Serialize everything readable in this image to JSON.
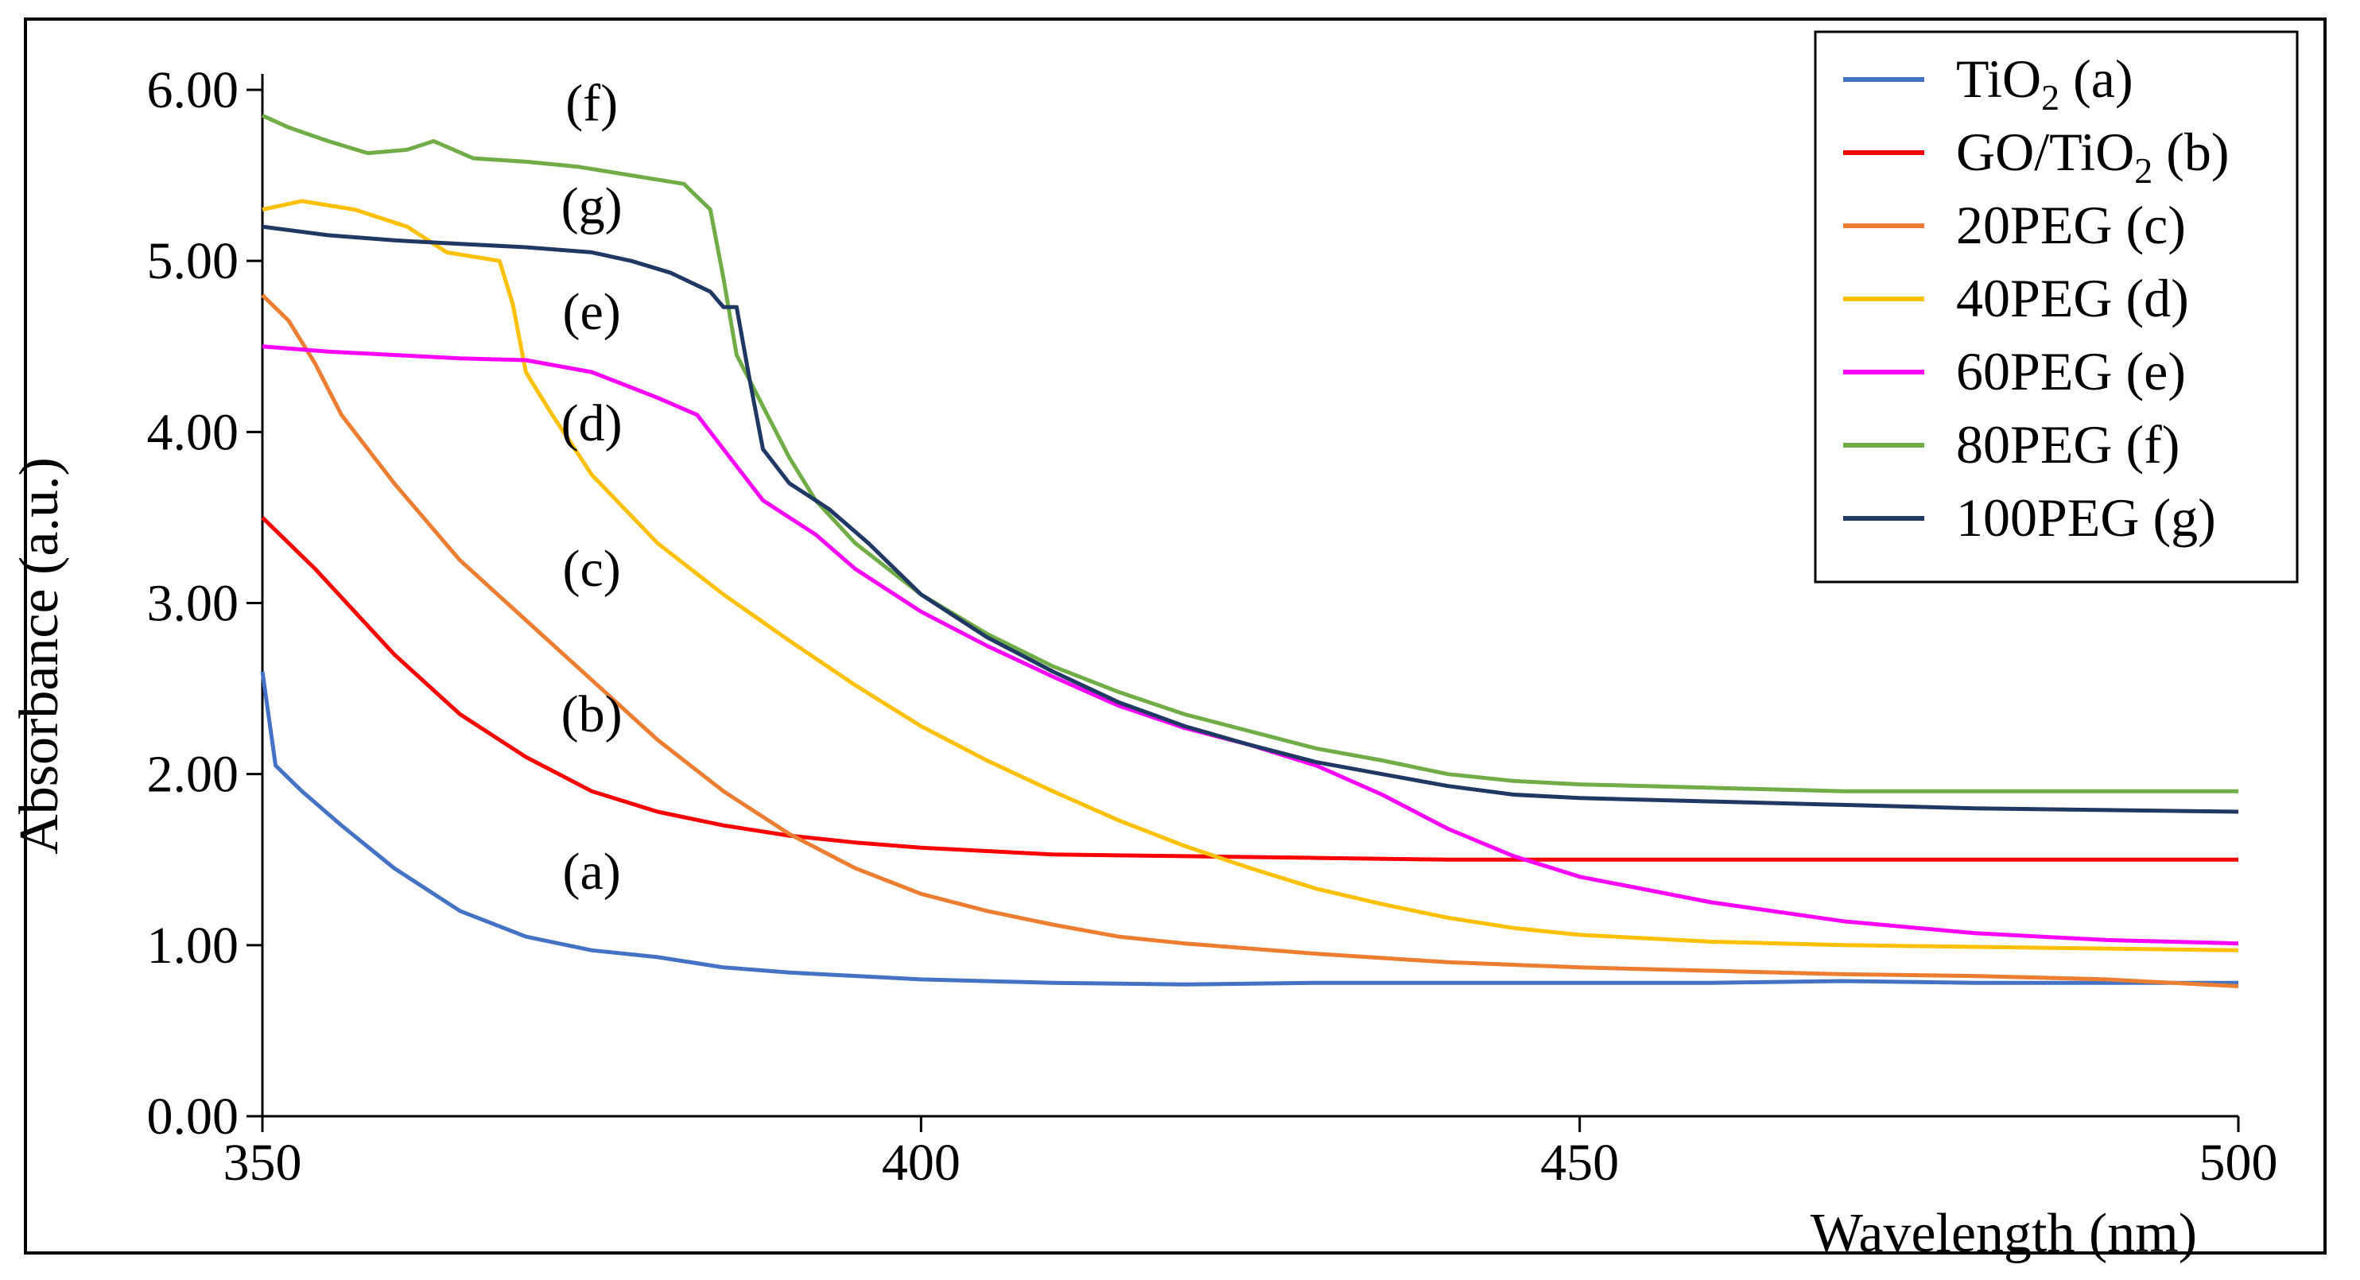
{
  "chart_data": {
    "type": "line",
    "title": "",
    "xlabel": "Wavelength (nm)",
    "ylabel": "Absorbance (a.u.)",
    "xlim": [
      350,
      500
    ],
    "ylim": [
      0,
      6
    ],
    "xticks": [
      350,
      400,
      450,
      500
    ],
    "xtick_labels": [
      "350",
      "400",
      "450",
      "500"
    ],
    "yticks": [
      0,
      1,
      2,
      3,
      4,
      5,
      6
    ],
    "ytick_labels": [
      "0.00",
      "1.00",
      "2.00",
      "3.00",
      "4.00",
      "5.00",
      "6.00"
    ],
    "grid": false,
    "legend_position": "top-right",
    "series": [
      {
        "name": "TiO2 (a)",
        "legend_main": "TiO",
        "legend_sub": "2",
        "legend_suffix": "(a)",
        "curve_label": "(a)",
        "color": "#4472C4",
        "label_at": [
          375,
          1.33
        ],
        "points": [
          [
            350,
            2.6
          ],
          [
            351,
            2.05
          ],
          [
            353,
            1.9
          ],
          [
            356,
            1.7
          ],
          [
            360,
            1.45
          ],
          [
            365,
            1.2
          ],
          [
            370,
            1.05
          ],
          [
            375,
            0.97
          ],
          [
            380,
            0.93
          ],
          [
            385,
            0.87
          ],
          [
            390,
            0.84
          ],
          [
            400,
            0.8
          ],
          [
            410,
            0.78
          ],
          [
            420,
            0.77
          ],
          [
            430,
            0.78
          ],
          [
            440,
            0.78
          ],
          [
            450,
            0.78
          ],
          [
            460,
            0.78
          ],
          [
            470,
            0.79
          ],
          [
            480,
            0.78
          ],
          [
            490,
            0.78
          ],
          [
            500,
            0.78
          ]
        ]
      },
      {
        "name": "GO/TiO2 (b)",
        "legend_main": "GO/TiO",
        "legend_sub": "2",
        "legend_suffix": "(b)",
        "curve_label": "(b)",
        "color": "#FF0000",
        "label_at": [
          375,
          2.25
        ],
        "points": [
          [
            350,
            3.5
          ],
          [
            352,
            3.35
          ],
          [
            354,
            3.2
          ],
          [
            357,
            2.95
          ],
          [
            360,
            2.7
          ],
          [
            365,
            2.35
          ],
          [
            370,
            2.1
          ],
          [
            375,
            1.9
          ],
          [
            380,
            1.78
          ],
          [
            385,
            1.7
          ],
          [
            390,
            1.64
          ],
          [
            395,
            1.6
          ],
          [
            400,
            1.57
          ],
          [
            410,
            1.53
          ],
          [
            420,
            1.52
          ],
          [
            430,
            1.51
          ],
          [
            440,
            1.5
          ],
          [
            450,
            1.5
          ],
          [
            460,
            1.5
          ],
          [
            470,
            1.5
          ],
          [
            480,
            1.5
          ],
          [
            490,
            1.5
          ],
          [
            500,
            1.5
          ]
        ]
      },
      {
        "name": "20PEG (c)",
        "legend_main": "20PEG",
        "legend_sub": "",
        "legend_suffix": "(c)",
        "curve_label": "(c)",
        "color": "#ED7D31",
        "label_at": [
          375,
          3.1
        ],
        "points": [
          [
            350,
            4.8
          ],
          [
            352,
            4.65
          ],
          [
            354,
            4.4
          ],
          [
            356,
            4.1
          ],
          [
            360,
            3.7
          ],
          [
            365,
            3.25
          ],
          [
            370,
            2.9
          ],
          [
            375,
            2.55
          ],
          [
            380,
            2.2
          ],
          [
            385,
            1.9
          ],
          [
            390,
            1.65
          ],
          [
            395,
            1.45
          ],
          [
            400,
            1.3
          ],
          [
            405,
            1.2
          ],
          [
            410,
            1.12
          ],
          [
            415,
            1.05
          ],
          [
            420,
            1.01
          ],
          [
            425,
            0.98
          ],
          [
            430,
            0.95
          ],
          [
            440,
            0.9
          ],
          [
            450,
            0.87
          ],
          [
            460,
            0.85
          ],
          [
            470,
            0.83
          ],
          [
            480,
            0.82
          ],
          [
            490,
            0.8
          ],
          [
            500,
            0.76
          ]
        ]
      },
      {
        "name": "40PEG (d)",
        "legend_main": "40PEG",
        "legend_sub": "",
        "legend_suffix": "(d)",
        "curve_label": "(d)",
        "color": "#FFC000",
        "label_at": [
          375,
          3.95
        ],
        "points": [
          [
            350,
            5.3
          ],
          [
            353,
            5.35
          ],
          [
            357,
            5.3
          ],
          [
            361,
            5.2
          ],
          [
            364,
            5.05
          ],
          [
            368,
            5.0
          ],
          [
            369,
            4.75
          ],
          [
            370,
            4.35
          ],
          [
            372,
            4.1
          ],
          [
            375,
            3.75
          ],
          [
            380,
            3.35
          ],
          [
            385,
            3.05
          ],
          [
            390,
            2.78
          ],
          [
            395,
            2.52
          ],
          [
            400,
            2.28
          ],
          [
            405,
            2.08
          ],
          [
            410,
            1.9
          ],
          [
            415,
            1.73
          ],
          [
            420,
            1.58
          ],
          [
            425,
            1.45
          ],
          [
            430,
            1.33
          ],
          [
            435,
            1.24
          ],
          [
            440,
            1.16
          ],
          [
            445,
            1.1
          ],
          [
            450,
            1.06
          ],
          [
            460,
            1.02
          ],
          [
            470,
            1.0
          ],
          [
            480,
            0.99
          ],
          [
            490,
            0.98
          ],
          [
            500,
            0.97
          ]
        ]
      },
      {
        "name": "60PEG (e)",
        "legend_main": "60PEG",
        "legend_sub": "",
        "legend_suffix": "(e)",
        "curve_label": "(e)",
        "color": "#FF00FF",
        "label_at": [
          375,
          4.6
        ],
        "points": [
          [
            350,
            4.5
          ],
          [
            355,
            4.47
          ],
          [
            360,
            4.45
          ],
          [
            365,
            4.43
          ],
          [
            370,
            4.42
          ],
          [
            375,
            4.35
          ],
          [
            380,
            4.2
          ],
          [
            383,
            4.1
          ],
          [
            385,
            3.9
          ],
          [
            388,
            3.6
          ],
          [
            392,
            3.4
          ],
          [
            395,
            3.2
          ],
          [
            400,
            2.95
          ],
          [
            405,
            2.75
          ],
          [
            410,
            2.57
          ],
          [
            415,
            2.4
          ],
          [
            420,
            2.27
          ],
          [
            425,
            2.17
          ],
          [
            430,
            2.05
          ],
          [
            435,
            1.88
          ],
          [
            440,
            1.68
          ],
          [
            445,
            1.52
          ],
          [
            450,
            1.4
          ],
          [
            460,
            1.25
          ],
          [
            470,
            1.14
          ],
          [
            480,
            1.07
          ],
          [
            490,
            1.03
          ],
          [
            500,
            1.01
          ]
        ]
      },
      {
        "name": "80PEG (f)",
        "legend_main": "80PEG",
        "legend_sub": "",
        "legend_suffix": "(f)",
        "curve_label": "(f)",
        "color": "#70AD47",
        "label_at": [
          375,
          5.82
        ],
        "points": [
          [
            350,
            5.85
          ],
          [
            352,
            5.78
          ],
          [
            355,
            5.7
          ],
          [
            358,
            5.63
          ],
          [
            361,
            5.65
          ],
          [
            363,
            5.7
          ],
          [
            366,
            5.6
          ],
          [
            370,
            5.58
          ],
          [
            374,
            5.55
          ],
          [
            378,
            5.5
          ],
          [
            382,
            5.45
          ],
          [
            384,
            5.3
          ],
          [
            385,
            4.9
          ],
          [
            386,
            4.45
          ],
          [
            388,
            4.15
          ],
          [
            390,
            3.85
          ],
          [
            392,
            3.6
          ],
          [
            395,
            3.35
          ],
          [
            400,
            3.05
          ],
          [
            405,
            2.82
          ],
          [
            410,
            2.63
          ],
          [
            415,
            2.48
          ],
          [
            420,
            2.35
          ],
          [
            425,
            2.25
          ],
          [
            430,
            2.15
          ],
          [
            435,
            2.08
          ],
          [
            440,
            2.0
          ],
          [
            445,
            1.96
          ],
          [
            450,
            1.94
          ],
          [
            460,
            1.92
          ],
          [
            470,
            1.9
          ],
          [
            480,
            1.9
          ],
          [
            490,
            1.9
          ],
          [
            500,
            1.9
          ]
        ]
      },
      {
        "name": "100PEG (g)",
        "legend_main": "100PEG",
        "legend_sub": "",
        "legend_suffix": "(g)",
        "curve_label": "(g)",
        "color": "#203864",
        "label_at": [
          375,
          5.22
        ],
        "points": [
          [
            350,
            5.2
          ],
          [
            355,
            5.15
          ],
          [
            360,
            5.12
          ],
          [
            365,
            5.1
          ],
          [
            370,
            5.08
          ],
          [
            375,
            5.05
          ],
          [
            378,
            5.0
          ],
          [
            381,
            4.93
          ],
          [
            384,
            4.82
          ],
          [
            385,
            4.73
          ],
          [
            386,
            4.73
          ],
          [
            387,
            4.3
          ],
          [
            388,
            3.9
          ],
          [
            390,
            3.7
          ],
          [
            393,
            3.55
          ],
          [
            396,
            3.35
          ],
          [
            400,
            3.05
          ],
          [
            405,
            2.8
          ],
          [
            410,
            2.6
          ],
          [
            415,
            2.42
          ],
          [
            420,
            2.28
          ],
          [
            425,
            2.17
          ],
          [
            430,
            2.07
          ],
          [
            435,
            2.0
          ],
          [
            440,
            1.93
          ],
          [
            445,
            1.88
          ],
          [
            450,
            1.86
          ],
          [
            460,
            1.84
          ],
          [
            470,
            1.82
          ],
          [
            480,
            1.8
          ],
          [
            490,
            1.79
          ],
          [
            500,
            1.78
          ]
        ]
      }
    ]
  }
}
